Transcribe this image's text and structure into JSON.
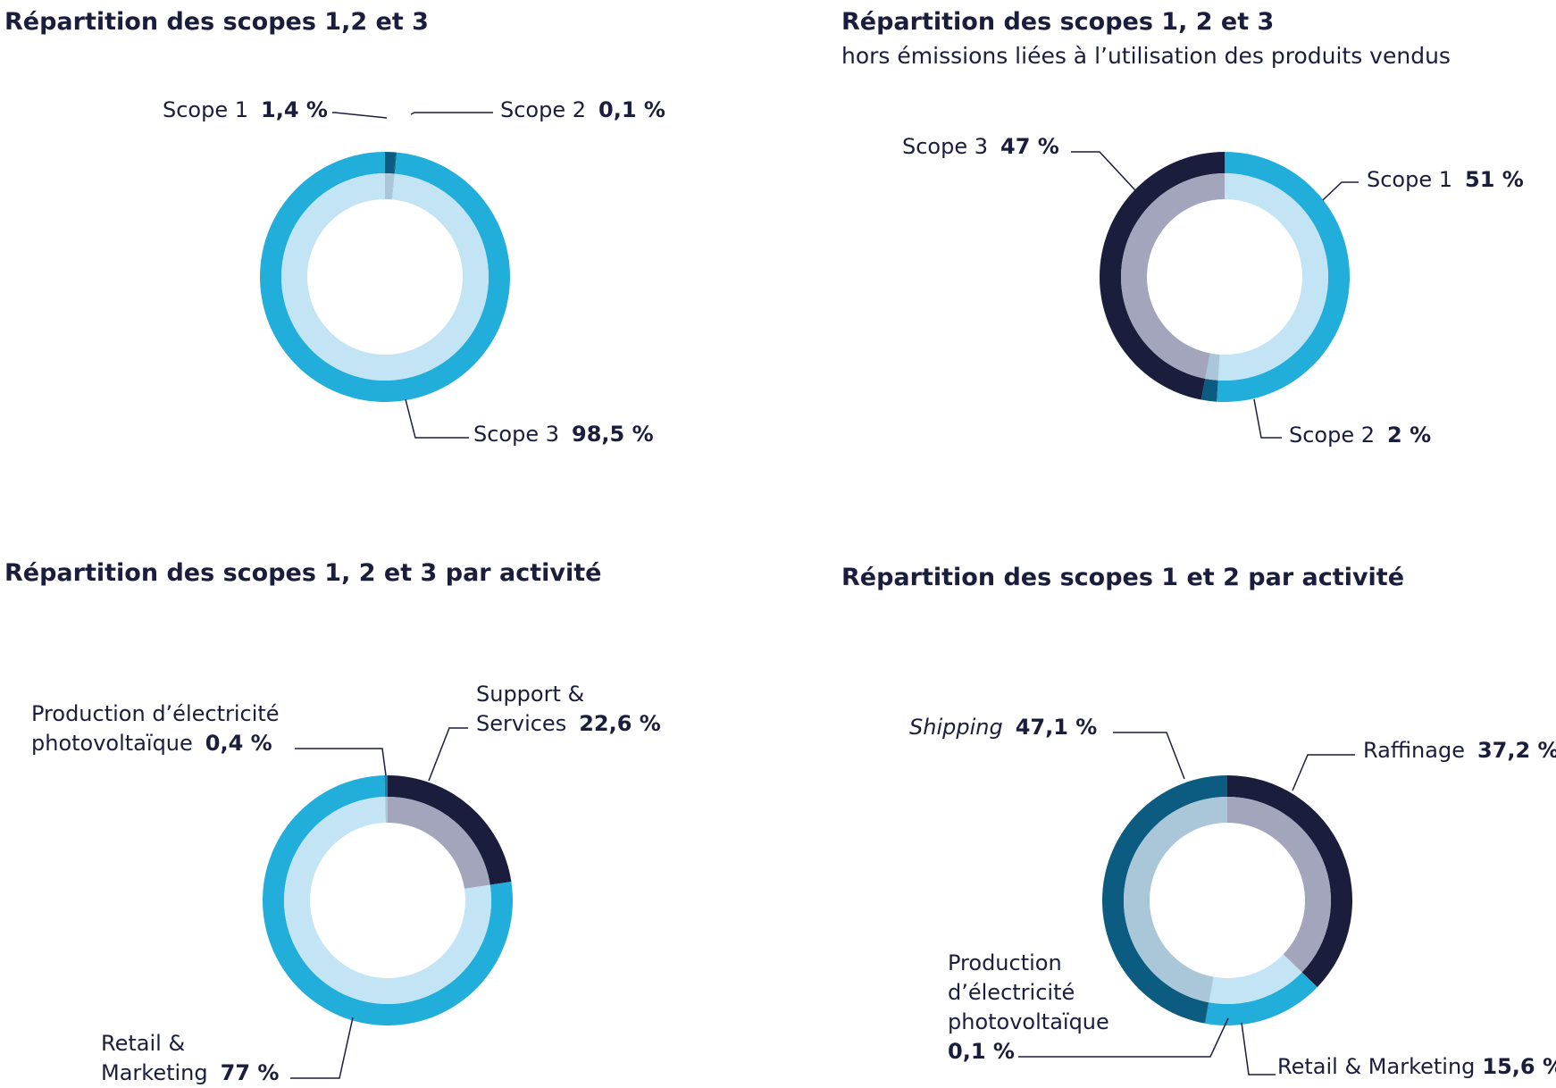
{
  "chart_data": [
    {
      "type": "pie",
      "title": "Répartition des scopes 1,2 et 3",
      "subtitle": "",
      "slices": [
        {
          "name": "Scope 1",
          "value": 1.4,
          "label": "1,4 %",
          "outer_color": "#0b5c80",
          "inner_color": "#a9c7d8"
        },
        {
          "name": "Scope 2",
          "value": 0.1,
          "label": "0,1 %",
          "outer_color": "#0b5c80",
          "inner_color": "#a9c7d8"
        },
        {
          "name": "Scope 3",
          "value": 98.5,
          "label": "98,5 %",
          "outer_color": "#22aedb",
          "inner_color": "#c3e4f4"
        }
      ]
    },
    {
      "type": "pie",
      "title": "Répartition des scopes 1, 2 et 3",
      "subtitle": "hors émissions liées à l’utilisation des produits vendus",
      "slices": [
        {
          "name": "Scope 1",
          "value": 51,
          "label": "51 %",
          "outer_color": "#22aedb",
          "inner_color": "#c3e4f4"
        },
        {
          "name": "Scope 2",
          "value": 2,
          "label": "2 %",
          "outer_color": "#0b5c80",
          "inner_color": "#a9c7d8"
        },
        {
          "name": "Scope 3",
          "value": 47,
          "label": "47 %",
          "outer_color": "#1b1d3d",
          "inner_color": "#a3a5bd"
        }
      ]
    },
    {
      "type": "pie",
      "title": "Répartition des scopes 1, 2 et 3 par activité",
      "subtitle": "",
      "slices": [
        {
          "name": "Support & Services",
          "name_lines": [
            "Support &",
            "Services"
          ],
          "value": 22.6,
          "label": "22,6 %",
          "outer_color": "#1b1d3d",
          "inner_color": "#a3a5bd"
        },
        {
          "name": "Retail & Marketing",
          "name_lines": [
            "Retail &",
            "Marketing"
          ],
          "value": 77,
          "label": "77 %",
          "outer_color": "#22aedb",
          "inner_color": "#c3e4f4"
        },
        {
          "name": "Production d’électricité photovoltaïque",
          "name_lines": [
            "Production d’électricité",
            "photovoltaïque"
          ],
          "value": 0.4,
          "label": "0,4 %",
          "outer_color": "#1d7fa6",
          "inner_color": "#a9c7d8"
        }
      ]
    },
    {
      "type": "pie",
      "title": "Répartition des scopes 1 et 2 par activité",
      "subtitle": "",
      "slices": [
        {
          "name": "Raffinage",
          "name_lines": [
            "Raffinage"
          ],
          "value": 37.2,
          "label": "37,2 %",
          "outer_color": "#1b1d3d",
          "inner_color": "#a3a5bd"
        },
        {
          "name": "Retail & Marketing",
          "name_lines": [
            "Retail & Marketing"
          ],
          "value": 15.6,
          "label": "15,6 %",
          "outer_color": "#22aedb",
          "inner_color": "#c3e4f4"
        },
        {
          "name": "Production d’électricité photovoltaïque",
          "name_lines": [
            "Production",
            "d’électricité",
            "photovoltaïque"
          ],
          "value": 0.1,
          "label": "0,1 %",
          "outer_color": "#1d7fa6",
          "inner_color": "#a9c7d8"
        },
        {
          "name": "Shipping",
          "name_lines": [
            "Shipping"
          ],
          "value": 47.1,
          "label": "47,1 %",
          "outer_color": "#0b5c80",
          "inner_color": "#a9c7d8",
          "italic": true
        }
      ]
    }
  ]
}
